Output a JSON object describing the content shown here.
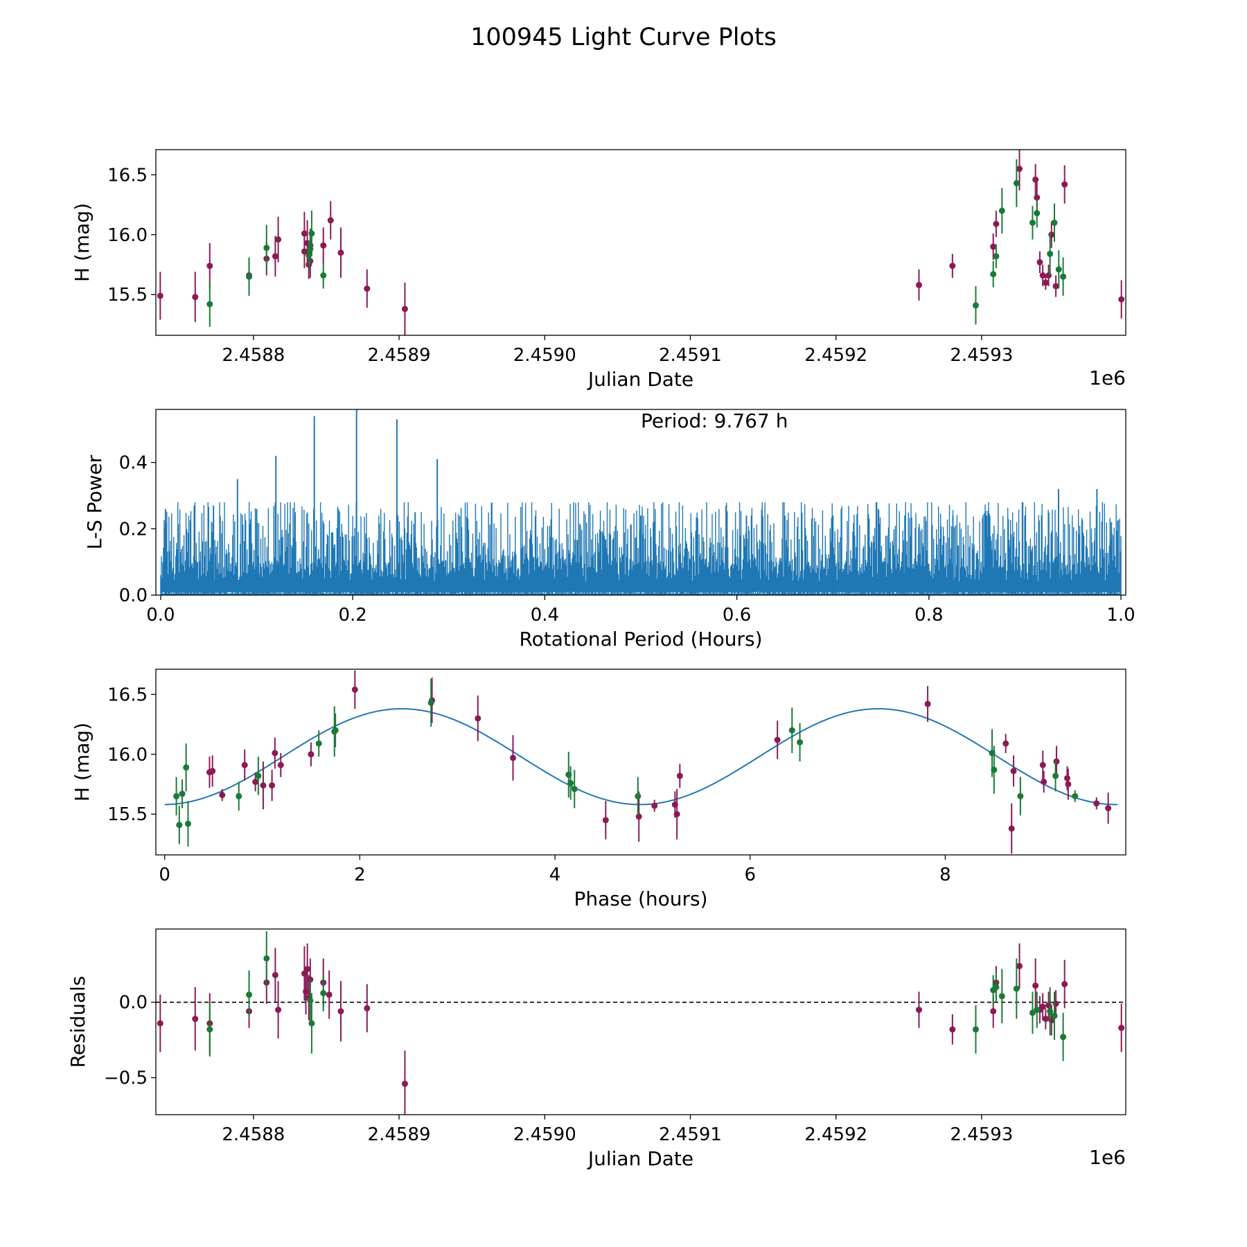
{
  "figure_title": "100945 Light Curve Plots",
  "colors": {
    "magenta": "#8b1a55",
    "green": "#1a7a36",
    "blue": "#1f77b4",
    "axis": "#000000"
  },
  "chart_data": [
    {
      "id": "lightcurve",
      "type": "scatter",
      "title": "",
      "xlabel": "Julian Date",
      "ylabel": "H (mag)",
      "x_offset_label": "1e6",
      "xlim": [
        2.458733,
        2.459399
      ],
      "ylim": [
        15.16,
        16.71
      ],
      "x_ticks": [
        2.4588,
        2.4589,
        2.459,
        2.4591,
        2.4592,
        2.4593
      ],
      "x_tick_labels": [
        "2.4588",
        "2.4589",
        "2.4590",
        "2.4591",
        "2.4592",
        "2.4593"
      ],
      "y_ticks": [
        15.5,
        16.0,
        16.5
      ],
      "y_tick_labels": [
        "15.5",
        "16.0",
        "16.5"
      ],
      "series": [
        {
          "name": "band-1",
          "color": "#8b1a55",
          "points": [
            [
              2.458736,
              15.49,
              0.2
            ],
            [
              2.45876,
              15.48,
              0.21
            ],
            [
              2.45877,
              15.74,
              0.19
            ],
            [
              2.458797,
              15.66,
              0.12
            ],
            [
              2.458809,
              15.8,
              0.14
            ],
            [
              2.458815,
              15.82,
              0.17
            ],
            [
              2.458817,
              15.96,
              0.19
            ],
            [
              2.458835,
              16.01,
              0.18
            ],
            [
              2.458835,
              15.86,
              0.14
            ],
            [
              2.458837,
              15.93,
              0.19
            ],
            [
              2.458838,
              15.75,
              0.12
            ],
            [
              2.458839,
              15.78,
              0.14
            ],
            [
              2.458839,
              15.91,
              0.14
            ],
            [
              2.458848,
              15.91,
              0.15
            ],
            [
              2.458853,
              16.12,
              0.16
            ],
            [
              2.45886,
              15.85,
              0.21
            ],
            [
              2.458878,
              15.55,
              0.16
            ],
            [
              2.458904,
              15.38,
              0.22
            ],
            [
              2.459257,
              15.58,
              0.13
            ],
            [
              2.45928,
              15.74,
              0.1
            ],
            [
              2.459308,
              15.9,
              0.11
            ],
            [
              2.45931,
              16.09,
              0.11
            ],
            [
              2.459326,
              16.55,
              0.18
            ],
            [
              2.459337,
              16.46,
              0.13
            ],
            [
              2.459338,
              16.31,
              0.16
            ],
            [
              2.45934,
              15.77,
              0.09
            ],
            [
              2.459342,
              15.66,
              0.09
            ],
            [
              2.459344,
              15.6,
              0.06
            ],
            [
              2.459346,
              15.66,
              0.09
            ],
            [
              2.459348,
              16.0,
              0.11
            ],
            [
              2.459351,
              15.57,
              0.09
            ],
            [
              2.459357,
              16.42,
              0.16
            ],
            [
              2.459396,
              15.46,
              0.16
            ]
          ]
        },
        {
          "name": "band-2",
          "color": "#1a7a36",
          "points": [
            [
              2.45877,
              15.42,
              0.19
            ],
            [
              2.458797,
              15.65,
              0.16
            ],
            [
              2.458809,
              15.89,
              0.19
            ],
            [
              2.458838,
              15.83,
              0.12
            ],
            [
              2.458839,
              15.88,
              0.12
            ],
            [
              2.45884,
              16.01,
              0.19
            ],
            [
              2.458848,
              15.66,
              0.11
            ],
            [
              2.459296,
              15.41,
              0.16
            ],
            [
              2.459308,
              15.67,
              0.11
            ],
            [
              2.45931,
              15.82,
              0.1
            ],
            [
              2.459314,
              16.2,
              0.19
            ],
            [
              2.459324,
              16.43,
              0.2
            ],
            [
              2.459335,
              16.1,
              0.14
            ],
            [
              2.459338,
              16.18,
              0.12
            ],
            [
              2.459347,
              15.84,
              0.18
            ],
            [
              2.45935,
              16.1,
              0.16
            ],
            [
              2.459353,
              15.71,
              0.16
            ],
            [
              2.459356,
              15.65,
              0.16
            ]
          ]
        }
      ]
    },
    {
      "id": "periodogram",
      "type": "line",
      "title": "",
      "annotation": "Period: 9.767 h",
      "xlabel": "Rotational Period (Hours)",
      "ylabel": "L-S Power",
      "xlim": [
        -0.005,
        1.005
      ],
      "ylim": [
        0.0,
        0.56
      ],
      "x_ticks": [
        0.0,
        0.2,
        0.4,
        0.6,
        0.8,
        1.0
      ],
      "x_tick_labels": [
        "0.0",
        "0.2",
        "0.4",
        "0.6",
        "0.8",
        "1.0"
      ],
      "y_ticks": [
        0.0,
        0.2,
        0.4
      ],
      "y_tick_labels": [
        "0.0",
        "0.2",
        "0.4"
      ],
      "noise": {
        "x_range": [
          0.0,
          1.0
        ],
        "samples": 1400,
        "mean": 0.06,
        "spread": 0.1,
        "seed": 100945
      },
      "peaks": [
        [
          0.12,
          0.42
        ],
        [
          0.16,
          0.54
        ],
        [
          0.204,
          0.56
        ],
        [
          0.246,
          0.53
        ],
        [
          0.288,
          0.41
        ],
        [
          0.08,
          0.35
        ],
        [
          0.935,
          0.32
        ],
        [
          0.975,
          0.32
        ],
        [
          0.005,
          0.26
        ],
        [
          0.035,
          0.27
        ],
        [
          0.055,
          0.27
        ],
        [
          0.1,
          0.26
        ],
        [
          0.14,
          0.25
        ],
        [
          0.185,
          0.26
        ],
        [
          0.265,
          0.25
        ],
        [
          0.5,
          0.24
        ],
        [
          0.61,
          0.24
        ],
        [
          0.65,
          0.24
        ],
        [
          0.7,
          0.24
        ],
        [
          0.775,
          0.24
        ],
        [
          0.825,
          0.24
        ],
        [
          0.86,
          0.24
        ],
        [
          0.9,
          0.24
        ],
        [
          0.99,
          0.22
        ]
      ]
    },
    {
      "id": "phased",
      "type": "scatter",
      "title": "",
      "xlabel": "Phase (hours)",
      "ylabel": "H (mag)",
      "xlim": [
        -0.09,
        9.85
      ],
      "ylim": [
        15.16,
        16.71
      ],
      "x_ticks": [
        0,
        2,
        4,
        6,
        8
      ],
      "x_tick_labels": [
        "0",
        "2",
        "4",
        "6",
        "8"
      ],
      "y_ticks": [
        15.5,
        16.0,
        16.5
      ],
      "y_tick_labels": [
        "15.5",
        "16.0",
        "16.5"
      ],
      "model": {
        "period": 9.767,
        "mean": 15.98,
        "amplitude": 0.4,
        "phase_of_max": 2.43,
        "harmonics": 2,
        "x_range": [
          0,
          9.767
        ]
      },
      "series": [
        {
          "name": "band-1",
          "color": "#8b1a55",
          "points": [
            [
              0.46,
              15.85,
              0.13
            ],
            [
              0.49,
              15.86,
              0.13
            ],
            [
              0.59,
              15.66,
              0.05
            ],
            [
              0.82,
              15.91,
              0.13
            ],
            [
              0.93,
              15.77,
              0.08
            ],
            [
              1.01,
              15.74,
              0.2
            ],
            [
              1.1,
              15.74,
              0.13
            ],
            [
              1.13,
              16.01,
              0.13
            ],
            [
              1.19,
              15.91,
              0.1
            ],
            [
              1.5,
              16.0,
              0.1
            ],
            [
              1.95,
              16.54,
              0.16
            ],
            [
              2.74,
              16.45,
              0.19
            ],
            [
              3.21,
              16.3,
              0.19
            ],
            [
              3.57,
              15.97,
              0.19
            ],
            [
              4.52,
              15.45,
              0.16
            ],
            [
              4.86,
              15.48,
              0.21
            ],
            [
              5.02,
              15.57,
              0.05
            ],
            [
              5.23,
              15.58,
              0.11
            ],
            [
              5.25,
              15.5,
              0.21
            ],
            [
              5.28,
              15.82,
              0.1
            ],
            [
              6.28,
              16.12,
              0.16
            ],
            [
              7.82,
              16.42,
              0.15
            ],
            [
              8.62,
              16.09,
              0.08
            ],
            [
              8.68,
              15.38,
              0.21
            ],
            [
              8.7,
              15.86,
              0.13
            ],
            [
              9.0,
              15.91,
              0.12
            ],
            [
              9.01,
              15.77,
              0.09
            ],
            [
              9.14,
              15.94,
              0.13
            ],
            [
              9.25,
              15.8,
              0.1
            ],
            [
              9.26,
              15.75,
              0.13
            ],
            [
              9.55,
              15.59,
              0.05
            ],
            [
              9.67,
              15.55,
              0.13
            ]
          ]
        },
        {
          "name": "band-2",
          "color": "#1a7a36",
          "points": [
            [
              0.12,
              15.65,
              0.16
            ],
            [
              0.15,
              15.41,
              0.16
            ],
            [
              0.18,
              15.67,
              0.12
            ],
            [
              0.22,
              15.89,
              0.2
            ],
            [
              0.24,
              15.42,
              0.19
            ],
            [
              0.76,
              15.65,
              0.12
            ],
            [
              0.96,
              15.82,
              0.16
            ],
            [
              1.58,
              16.09,
              0.11
            ],
            [
              1.74,
              16.19,
              0.21
            ],
            [
              1.75,
              16.2,
              0.14
            ],
            [
              2.73,
              16.43,
              0.2
            ],
            [
              4.14,
              15.83,
              0.19
            ],
            [
              4.16,
              15.76,
              0.14
            ],
            [
              4.2,
              15.71,
              0.16
            ],
            [
              4.85,
              15.65,
              0.16
            ],
            [
              6.43,
              16.2,
              0.19
            ],
            [
              6.51,
              16.1,
              0.16
            ],
            [
              8.48,
              16.01,
              0.2
            ],
            [
              8.5,
              15.87,
              0.2
            ],
            [
              8.77,
              15.65,
              0.16
            ],
            [
              9.13,
              15.82,
              0.13
            ],
            [
              9.33,
              15.65,
              0.05
            ]
          ]
        }
      ]
    },
    {
      "id": "residuals",
      "type": "scatter",
      "title": "",
      "xlabel": "Julian Date",
      "ylabel": "Residuals",
      "x_offset_label": "1e6",
      "xlim": [
        2.458733,
        2.459399
      ],
      "ylim": [
        -0.745,
        0.485
      ],
      "zero_line": true,
      "x_ticks": [
        2.4588,
        2.4589,
        2.459,
        2.4591,
        2.4592,
        2.4593
      ],
      "x_tick_labels": [
        "2.4588",
        "2.4589",
        "2.4590",
        "2.4591",
        "2.4592",
        "2.4593"
      ],
      "y_ticks": [
        -0.5,
        0.0
      ],
      "y_tick_labels": [
        "−0.5",
        "0.0"
      ],
      "series": [
        {
          "name": "band-1",
          "color": "#8b1a55",
          "points": [
            [
              2.458736,
              -0.14,
              0.19
            ],
            [
              2.45876,
              -0.11,
              0.21
            ],
            [
              2.45877,
              -0.14,
              0.2
            ],
            [
              2.458797,
              -0.06,
              0.11
            ],
            [
              2.458809,
              0.13,
              0.14
            ],
            [
              2.458815,
              0.18,
              0.18
            ],
            [
              2.458817,
              -0.05,
              0.19
            ],
            [
              2.458835,
              0.19,
              0.18
            ],
            [
              2.458836,
              0.07,
              0.15
            ],
            [
              2.458837,
              0.22,
              0.17
            ],
            [
              2.458838,
              0.03,
              0.15
            ],
            [
              2.458839,
              0.15,
              0.14
            ],
            [
              2.458848,
              0.13,
              0.16
            ],
            [
              2.458852,
              0.05,
              0.16
            ],
            [
              2.45886,
              -0.06,
              0.2
            ],
            [
              2.458878,
              -0.04,
              0.16
            ],
            [
              2.458904,
              -0.54,
              0.22
            ],
            [
              2.459257,
              -0.05,
              0.12
            ],
            [
              2.45928,
              -0.18,
              0.1
            ],
            [
              2.459308,
              -0.06,
              0.11
            ],
            [
              2.45931,
              0.13,
              0.11
            ],
            [
              2.459326,
              0.24,
              0.15
            ],
            [
              2.459337,
              0.11,
              0.18
            ],
            [
              2.45934,
              -0.05,
              0.09
            ],
            [
              2.459342,
              -0.03,
              0.09
            ],
            [
              2.459344,
              -0.11,
              0.07
            ],
            [
              2.459346,
              -0.02,
              0.09
            ],
            [
              2.459348,
              -0.12,
              0.1
            ],
            [
              2.459351,
              -0.01,
              0.09
            ],
            [
              2.459357,
              0.12,
              0.16
            ],
            [
              2.459396,
              -0.17,
              0.16
            ]
          ]
        },
        {
          "name": "band-2",
          "color": "#1a7a36",
          "points": [
            [
              2.45877,
              -0.18,
              0.18
            ],
            [
              2.458797,
              0.05,
              0.16
            ],
            [
              2.458809,
              0.29,
              0.18
            ],
            [
              2.458839,
              0.01,
              0.14
            ],
            [
              2.45884,
              -0.14,
              0.2
            ],
            [
              2.458848,
              0.06,
              0.12
            ],
            [
              2.459296,
              -0.18,
              0.16
            ],
            [
              2.459308,
              0.08,
              0.1
            ],
            [
              2.45931,
              0.1,
              0.1
            ],
            [
              2.459314,
              0.04,
              0.18
            ],
            [
              2.459324,
              0.09,
              0.2
            ],
            [
              2.459335,
              -0.07,
              0.14
            ],
            [
              2.459338,
              -0.05,
              0.12
            ],
            [
              2.459347,
              -0.06,
              0.16
            ],
            [
              2.45935,
              -0.09,
              0.16
            ],
            [
              2.459356,
              -0.23,
              0.16
            ]
          ]
        }
      ]
    }
  ]
}
